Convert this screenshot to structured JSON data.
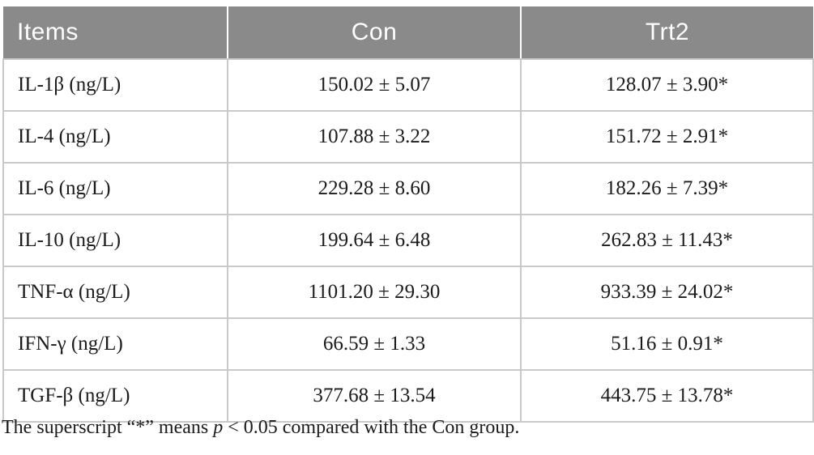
{
  "table": {
    "columns": [
      {
        "label": "Items"
      },
      {
        "label": "Con"
      },
      {
        "label": "Trt2"
      }
    ],
    "rows": [
      {
        "item": "IL-1β (ng/L)",
        "con": "150.02 ± 5.07",
        "trt2": "128.07 ± 3.90*"
      },
      {
        "item": "IL-4 (ng/L)",
        "con": "107.88 ± 3.22",
        "trt2": "151.72 ± 2.91*"
      },
      {
        "item": "IL-6 (ng/L)",
        "con": "229.28 ± 8.60",
        "trt2": "182.26 ± 7.39*"
      },
      {
        "item": "IL-10 (ng/L)",
        "con": "199.64 ± 6.48",
        "trt2": "262.83 ± 11.43*"
      },
      {
        "item": "TNF-α (ng/L)",
        "con": "1101.20 ± 29.30",
        "trt2": "933.39 ± 24.02*"
      },
      {
        "item": "IFN-γ (ng/L)",
        "con": "66.59 ± 1.33",
        "trt2": "51.16 ± 0.91*"
      },
      {
        "item": "TGF-β (ng/L)",
        "con": "377.68 ± 13.54",
        "trt2": "443.75 ± 13.78*"
      }
    ]
  },
  "footnote": {
    "prefix": "The superscript “*” means ",
    "italic": "p",
    "suffix": " < 0.05 compared with the Con group."
  },
  "colors": {
    "header_bg": "#8a8a8a",
    "header_text": "#ffffff",
    "cell_border": "#c9c9c9",
    "body_text": "#1b1b1b"
  }
}
